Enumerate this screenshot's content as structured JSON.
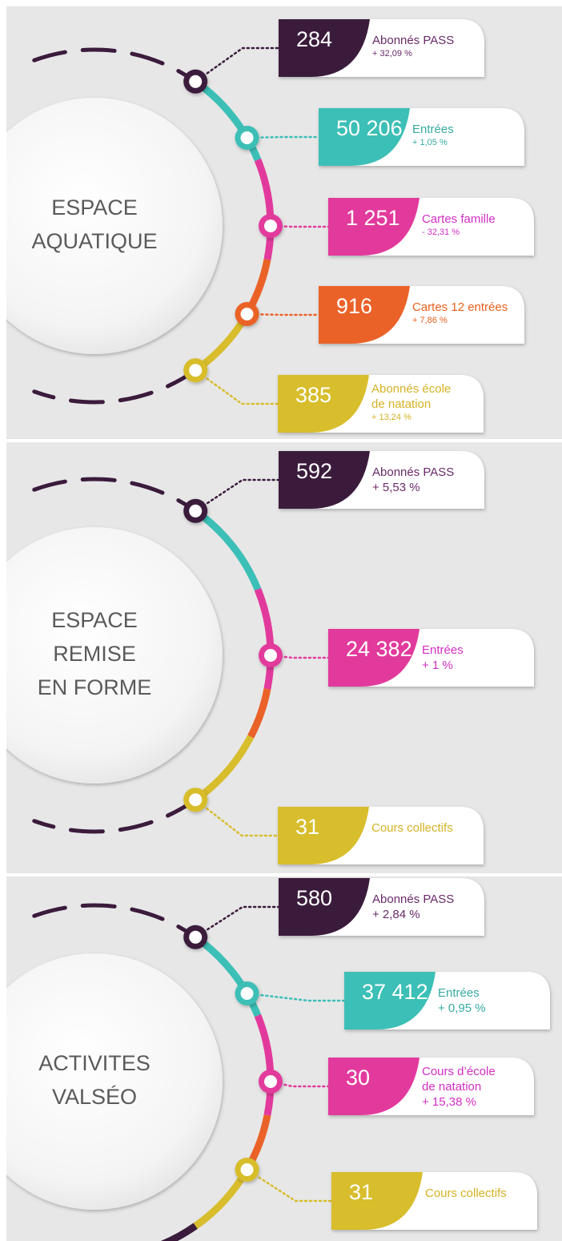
{
  "sections": [
    {
      "title": [
        "ESPACE",
        "AQUATIQUE"
      ],
      "items": [
        {
          "value": "284",
          "label": [
            "Abonnés PASS"
          ],
          "change": "+ 32,09 %"
        },
        {
          "value": "50 206",
          "label": [
            "Entrées"
          ],
          "change": "+ 1,05 %"
        },
        {
          "value": "1 251",
          "label": [
            "Cartes famille"
          ],
          "change": "- 32,31 %"
        },
        {
          "value": "916",
          "label": [
            "Cartes 12 entrées"
          ],
          "change": "+ 7,86 %"
        },
        {
          "value": "385",
          "label": [
            "Abonnés école",
            "de natation"
          ],
          "change": "+ 13,24 %"
        }
      ]
    },
    {
      "title": [
        "ESPACE",
        "REMISE",
        "EN FORME"
      ],
      "items": [
        {
          "value": "592",
          "label": [
            "Abonnés PASS"
          ],
          "change": "+ 5,53 %"
        },
        {
          "value": "24 382",
          "label": [
            "Entrées"
          ],
          "change": "+ 1 %"
        },
        {
          "value": "31",
          "label": [
            "Cours collectifs"
          ]
        }
      ]
    },
    {
      "title": [
        "ACTIVITES",
        "VALSÉO"
      ],
      "items": [
        {
          "value": "580",
          "label": [
            "Abonnés PASS"
          ],
          "change": "+ 2,84 %"
        },
        {
          "value": "37 412",
          "label": [
            "Entrées"
          ],
          "change": "+ 0,95 %"
        },
        {
          "value": "30",
          "label": [
            "Cours d’école",
            "de natation"
          ],
          "change": "+ 15,38 %"
        },
        {
          "value": "31",
          "label": [
            "Cours collectifs"
          ]
        }
      ]
    }
  ]
}
